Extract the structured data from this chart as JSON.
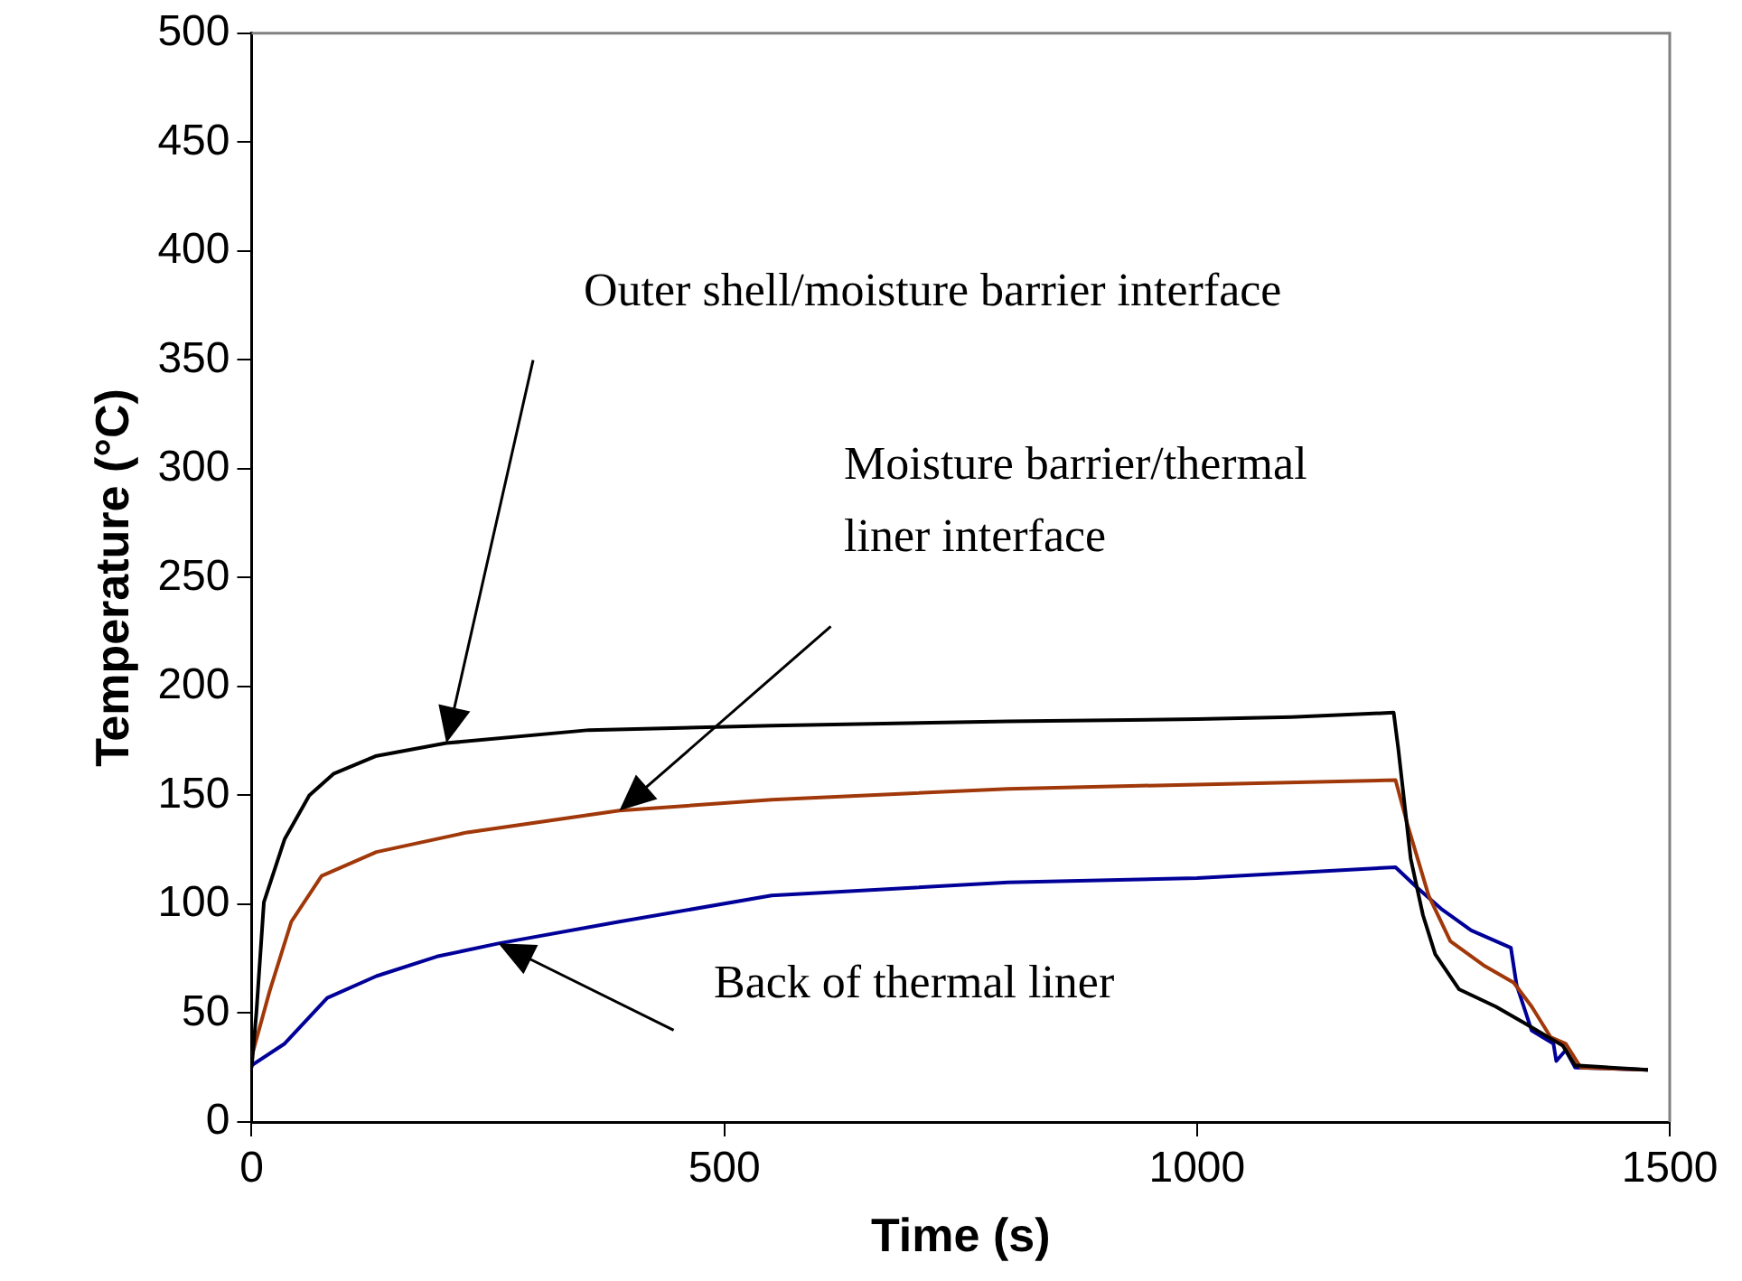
{
  "chart_data": {
    "type": "line",
    "xlabel": "Time (s)",
    "ylabel": "Temperature (°C)",
    "xlim": [
      0,
      1500
    ],
    "xticks": [
      0,
      500,
      1000,
      1500
    ],
    "ylim": [
      0,
      500
    ],
    "yticks": [
      0,
      50,
      100,
      150,
      200,
      250,
      300,
      350,
      400,
      450,
      500
    ],
    "grid": false,
    "legend": false,
    "marker": "none",
    "line_style": "solid",
    "series": [
      {
        "color": "#000000",
        "x": [
          0,
          5,
          13,
          35,
          61,
          87,
          131,
          206,
          357,
          550,
          800,
          1000,
          1100,
          1208,
          1213,
          1226,
          1239,
          1252,
          1277,
          1316,
          1348,
          1387,
          1400,
          1477
        ],
        "values": [
          25,
          50,
          101,
          130,
          150,
          160,
          168,
          174,
          180,
          182,
          184,
          185,
          186,
          188,
          171,
          121,
          95,
          77,
          61,
          53,
          45,
          35,
          26,
          24
        ]
      },
      {
        "color": "#a0380a",
        "x": [
          0,
          19,
          42,
          74,
          132,
          228,
          389,
          550,
          800,
          1000,
          1210,
          1223,
          1245,
          1268,
          1303,
          1335,
          1354,
          1374,
          1390,
          1406,
          1477
        ],
        "values": [
          30,
          60,
          92,
          113,
          124,
          133,
          143,
          148,
          153,
          155,
          157,
          136,
          104,
          83,
          72,
          64,
          53,
          39,
          36,
          25,
          24
        ]
      },
      {
        "color": "#000099",
        "x": [
          0,
          35,
          80,
          132,
          196,
          261,
          389,
          550,
          800,
          1000,
          1210,
          1232,
          1258,
          1290,
          1332,
          1338,
          1354,
          1377,
          1380,
          1390,
          1400,
          1477
        ],
        "values": [
          26,
          36,
          57,
          67,
          76,
          82,
          92,
          104,
          110,
          112,
          117,
          108,
          98,
          88,
          80,
          63,
          42,
          36,
          28,
          33,
          25,
          24
        ]
      }
    ],
    "annotations": [
      "Outer shell/moisture barrier interface",
      "Moisture barrier/thermal\nliner interface",
      "Back of thermal liner"
    ]
  }
}
